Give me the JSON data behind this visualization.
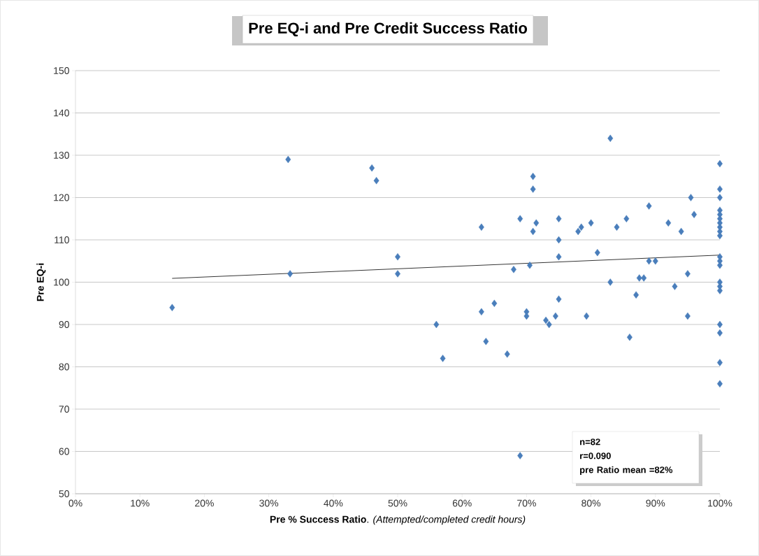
{
  "chart_data": {
    "type": "scatter",
    "title": "Pre EQ-i and Pre Credit Success Ratio",
    "xlabel": "**Pre % Success Ratio**. *(Attempted/completed credit hours)*",
    "ylabel": "Pre EQ-i",
    "series": [
      {
        "color": "#4a7ebb",
        "marker": "diamond",
        "x": [
          15,
          33,
          33.3,
          46,
          46.7,
          50,
          50,
          56,
          57,
          63,
          63,
          63.7,
          65,
          67,
          68,
          69,
          69,
          70,
          70,
          70.5,
          71,
          71,
          71,
          71.5,
          73,
          73.5,
          74.5,
          75,
          75,
          75,
          75,
          78,
          78.5,
          79.3,
          80,
          81,
          83,
          83,
          84,
          85.5,
          86,
          87,
          87.5,
          88.2,
          89,
          89,
          90,
          92,
          93,
          94,
          95,
          95,
          95.5,
          96,
          100,
          100,
          100,
          100,
          100,
          100,
          100,
          100,
          100,
          100,
          100,
          100,
          100,
          100,
          100,
          100,
          100,
          100,
          100,
          100
        ],
        "values": [
          94,
          129,
          102,
          127,
          124,
          106,
          102,
          90,
          82,
          113,
          93,
          86,
          95,
          83,
          103,
          115,
          59,
          93,
          92,
          104,
          125,
          122,
          112,
          114,
          91,
          90,
          92,
          115,
          110,
          106,
          96,
          112,
          113,
          92,
          114,
          107,
          134,
          100,
          113,
          115,
          87,
          97,
          101,
          101,
          118,
          105,
          105,
          114,
          99,
          112,
          102,
          92,
          120,
          116,
          128,
          122,
          120,
          117,
          116,
          115,
          114,
          113,
          112,
          111,
          106,
          105,
          104,
          100,
          99,
          98,
          90,
          88,
          81,
          76
        ]
      },
      {
        "type": "line",
        "color": "#000000",
        "marker": "none",
        "x": [
          15,
          100
        ],
        "values": [
          100.9,
          106.4
        ]
      }
    ],
    "xlim": [
      0,
      100
    ],
    "ylim": [
      50,
      150
    ],
    "xticks": [
      {
        "value": 0,
        "label": "0%"
      },
      {
        "value": 10,
        "label": "10%"
      },
      {
        "value": 20,
        "label": "20%"
      },
      {
        "value": 30,
        "label": "30%"
      },
      {
        "value": 40,
        "label": "40%"
      },
      {
        "value": 50,
        "label": "50%"
      },
      {
        "value": 60,
        "label": "60%"
      },
      {
        "value": 70,
        "label": "70%"
      },
      {
        "value": 80,
        "label": "80%"
      },
      {
        "value": 90,
        "label": "90%"
      },
      {
        "value": 100,
        "label": "100%"
      }
    ],
    "yticks": [
      50,
      60,
      70,
      80,
      90,
      100,
      110,
      120,
      130,
      140,
      150
    ],
    "grid": "y",
    "annotations": [
      "n=82",
      "r=0.090",
      "pre Ratio mean =82%"
    ]
  }
}
